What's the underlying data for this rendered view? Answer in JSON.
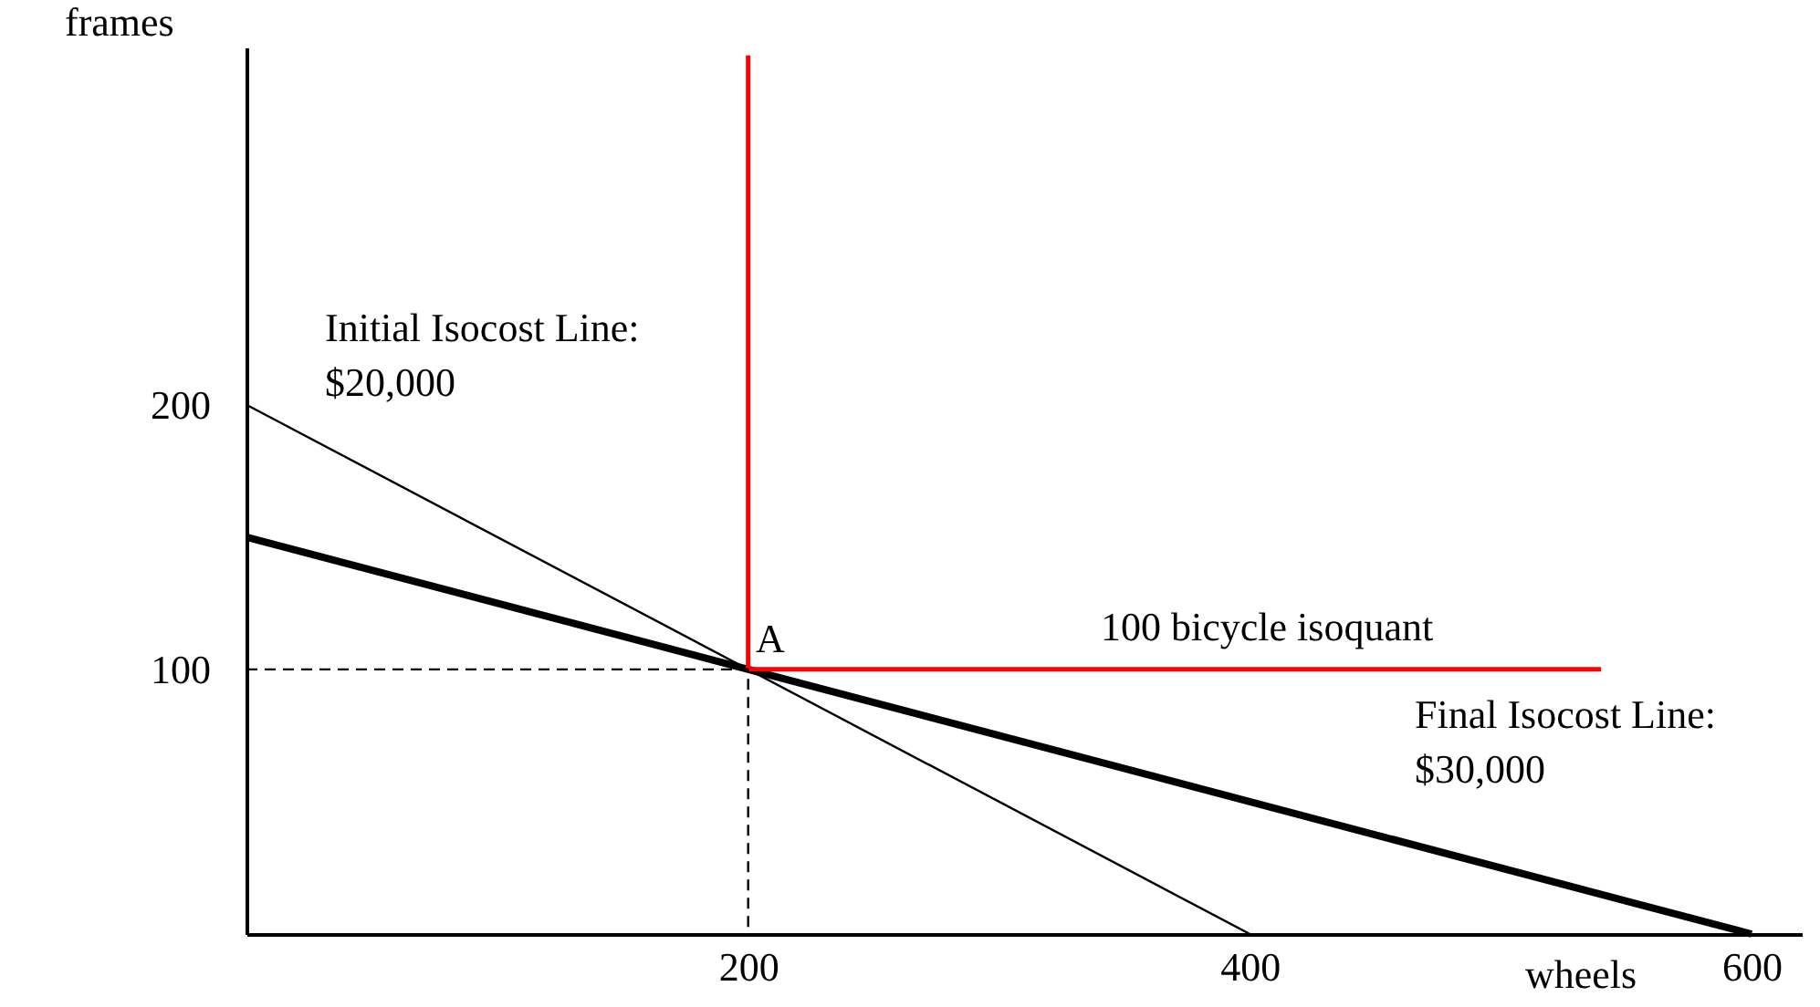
{
  "chart_data": {
    "type": "line",
    "xlabel": "wheels",
    "ylabel": "frames",
    "xlim": [
      0,
      620
    ],
    "ylim": [
      0,
      335
    ],
    "xticks": [
      200,
      400,
      600
    ],
    "yticks": [
      100,
      200
    ],
    "grid": false,
    "marker": "none",
    "series": [
      {
        "color": "#000000",
        "x": [
          0,
          400
        ],
        "values": [
          200,
          0
        ]
      },
      {
        "color": "#000000",
        "x": [
          0,
          600
        ],
        "values": [
          150,
          0
        ]
      },
      {
        "color": "#ff0000",
        "x": [
          200,
          200,
          540
        ],
        "values": [
          332,
          100,
          100
        ]
      },
      {
        "color": "#000000",
        "x": [
          0,
          200,
          200
        ],
        "values": [
          100,
          100,
          0
        ],
        "line_style": "dashed"
      }
    ],
    "annotations": [
      "Initial Isocost Line:\n$20,000",
      {
        "text": "A",
        "x": 203,
        "y": 103
      },
      "100 bicycle isoquant",
      "Final Isocost Line:\n$30,000"
    ]
  }
}
